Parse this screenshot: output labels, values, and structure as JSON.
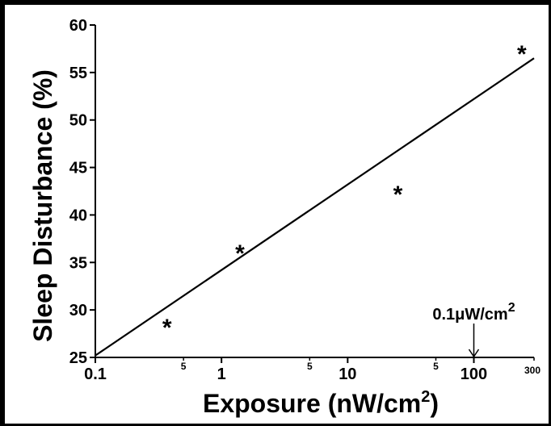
{
  "chart_data": {
    "type": "scatter",
    "xlabel": "Exposure  (nW/cm",
    "xlabel_sup": "2",
    "xlabel_close": ")",
    "ylabel": "Sleep Disturbance (%)",
    "x_scale": "log",
    "xlim": [
      0.1,
      300
    ],
    "ylim": [
      25,
      60
    ],
    "x_major_ticks": [
      0.1,
      1,
      10,
      100
    ],
    "x_major_labels": [
      "0.1",
      "1",
      "10",
      "100"
    ],
    "x_minor_ticks": [
      0.5,
      5,
      50,
      300
    ],
    "x_minor_labels": [
      "5",
      "5",
      "5",
      "300"
    ],
    "y_ticks": [
      25,
      30,
      35,
      40,
      45,
      50,
      55,
      60
    ],
    "y_tick_labels": [
      "25",
      "30",
      "35",
      "40",
      "45",
      "50",
      "55",
      "60"
    ],
    "grid": false,
    "series": [
      {
        "marker": "*",
        "points": [
          {
            "x": 0.37,
            "y": 28.5
          },
          {
            "x": 1.4,
            "y": 36.3
          },
          {
            "x": 25,
            "y": 42.5
          },
          {
            "x": 240,
            "y": 57.3
          }
        ]
      }
    ],
    "fit_line": {
      "x": [
        0.1,
        300
      ],
      "y": [
        25.2,
        56.5
      ]
    },
    "annotation": {
      "text": "0.1μW/cm",
      "sup": "2",
      "x": 100,
      "arrow": true
    }
  },
  "colors": {
    "ink": "#000000",
    "background": "#ffffff"
  }
}
